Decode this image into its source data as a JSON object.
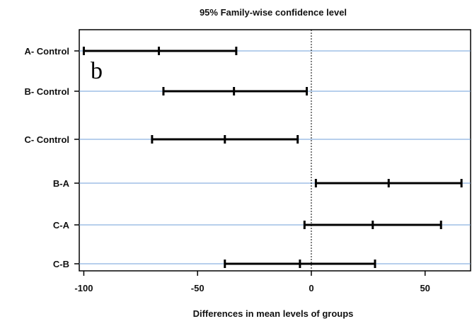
{
  "chart_data": {
    "type": "interval",
    "title": "95% Family-wise confidence level",
    "xlabel": "Differences in mean levels of groups",
    "ylabel": "",
    "panel_label": "b",
    "xlim": [
      -102,
      70
    ],
    "x_ticks": [
      -100,
      -50,
      0,
      50
    ],
    "reference_line": 0,
    "grid": "horizontal lines at each comparison",
    "colors": {
      "interval": "#000000",
      "gridline": "#6f9fd8",
      "axis": "#000000",
      "reference": "#000000"
    },
    "comparisons": [
      {
        "label": "A- Control",
        "lwr": -100,
        "diff": -67,
        "upr": -33
      },
      {
        "label": "B- Control",
        "lwr": -65,
        "diff": -34,
        "upr": -2
      },
      {
        "label": "C- Control",
        "lwr": -70,
        "diff": -38,
        "upr": -6
      },
      {
        "label": "B-A",
        "lwr": 2,
        "diff": 34,
        "upr": 66
      },
      {
        "label": "C-A",
        "lwr": -3,
        "diff": 27,
        "upr": 57
      },
      {
        "label": "C-B",
        "lwr": -38,
        "diff": -5,
        "upr": 28
      }
    ]
  }
}
